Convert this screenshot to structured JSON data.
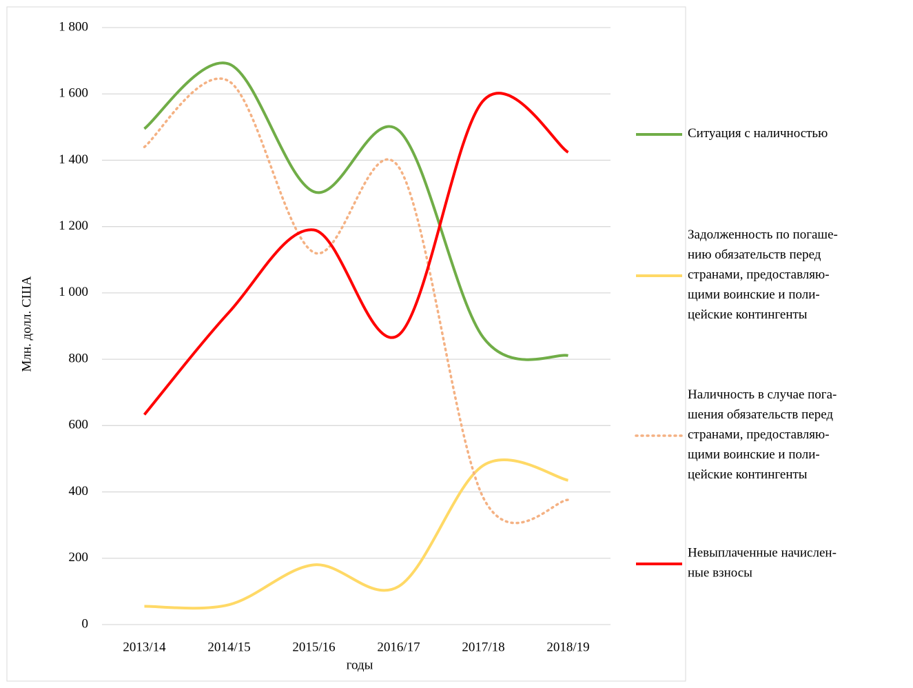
{
  "chart_data": {
    "type": "line",
    "smooth": true,
    "y_label": "Млн. долл. США",
    "x_label": "годы",
    "categories": [
      "2013/14",
      "2014/15",
      "2015/16",
      "2016/17",
      "2017/18",
      "2018/19"
    ],
    "series": [
      {
        "name": "Ситуация с наличностью",
        "color": "#70ad47",
        "style": "solid",
        "values": [
          1495,
          1690,
          1305,
          1490,
          865,
          811
        ]
      },
      {
        "name": "Задолженность по погаше-\nнию обязательств перед\nстранами, предоставляю-\nщими воинские и поли-\nцейские контингенты",
        "color": "#ffd966",
        "style": "solid",
        "values": [
          55,
          60,
          180,
          115,
          480,
          435
        ]
      },
      {
        "name": "Наличность в случае пога-\nшения обязательств перед\nстранами, предоставляю-\nщими воинские и поли-\nцейские контингенты",
        "color": "#f4b183",
        "style": "dotted",
        "values": [
          1440,
          1638,
          1122,
          1380,
          382,
          376
        ]
      },
      {
        "name": "Невыплаченные начислен-\nные взносы",
        "color": "#ff0000",
        "style": "solid",
        "values": [
          633,
          942,
          1190,
          873,
          1580,
          1424
        ]
      }
    ],
    "ylim": [
      0,
      1800
    ],
    "yticks": [
      0,
      200,
      400,
      600,
      800,
      {
        "value": 1000,
        "label": "1 000"
      },
      {
        "value": 1200,
        "label": "1 200"
      },
      {
        "value": 1400,
        "label": "1 400"
      },
      {
        "value": 1600,
        "label": "1 600"
      },
      {
        "value": 1800,
        "label": "1 800"
      }
    ],
    "grid": true,
    "legend": "right"
  }
}
